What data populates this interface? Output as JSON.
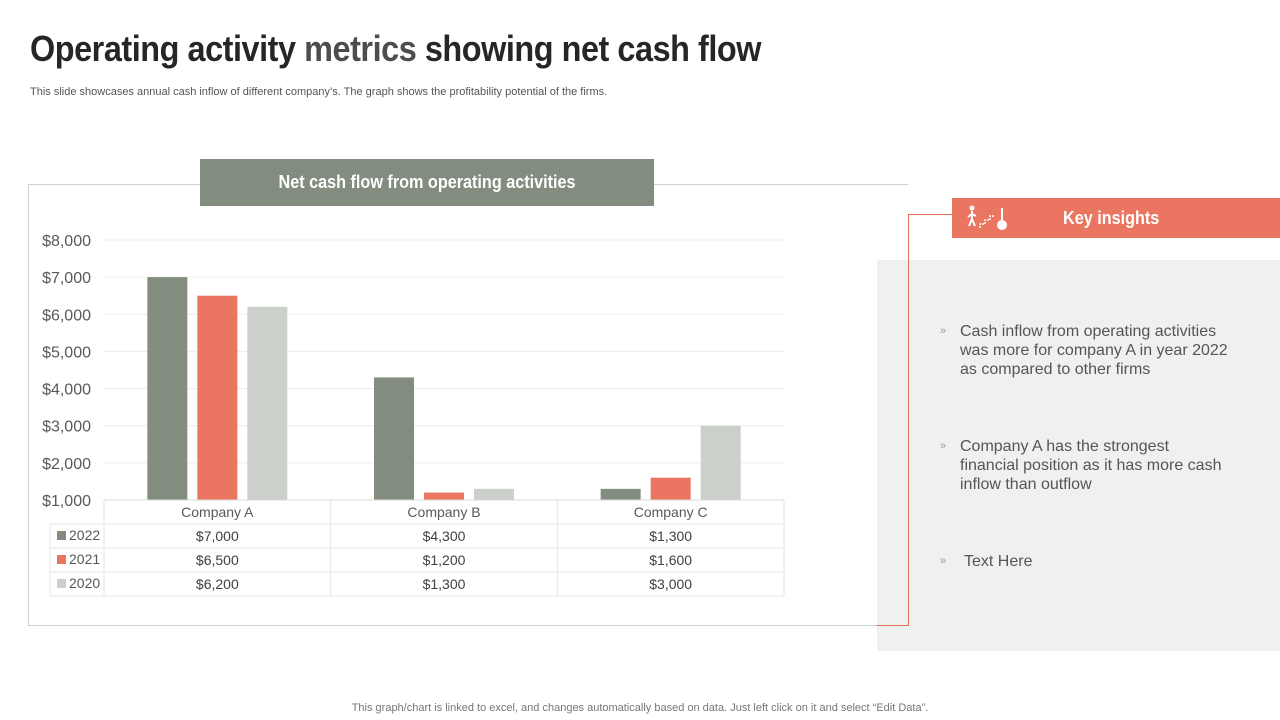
{
  "page": {
    "title_part1": "Operating activity",
    "title_part2": "metrics",
    "title_part3": "showing net cash flow",
    "subtitle": "This slide showcases annual cash inflow of different company’s. The graph shows the profitability potential of the firms.",
    "footer": "This graph/chart is linked to excel,  and changes automatically based on data. Just left click on it and select “Edit Data”."
  },
  "chart_header": "Net cash flow from operating activities",
  "chart_data": {
    "type": "bar",
    "title": "Net cash flow from operating activities",
    "categories": [
      "Company A",
      "Company B",
      "Company C"
    ],
    "series": [
      {
        "name": "2022",
        "color": "#838d7f",
        "values": [
          7000,
          4300,
          1300
        ],
        "labels": [
          "$7,000",
          "$4,300",
          "$1,300"
        ]
      },
      {
        "name": "2021",
        "color": "#ea7560",
        "values": [
          6500,
          1200,
          1600
        ],
        "labels": [
          "$6,500",
          "$1,200",
          "$1,600"
        ]
      },
      {
        "name": "2020",
        "color": "#ccd0cb",
        "values": [
          6200,
          1300,
          3000
        ],
        "labels": [
          "$6,200",
          "$1,300",
          "$3,000"
        ]
      }
    ],
    "ylim": [
      1000,
      8000
    ],
    "yticks": [
      1000,
      2000,
      3000,
      4000,
      5000,
      6000,
      7000,
      8000
    ],
    "ytick_labels": [
      "$1,000",
      "$2,000",
      "$3,000",
      "$4,000",
      "$5,000",
      "$6,000",
      "$7,000",
      "$8,000"
    ],
    "grid": true,
    "legend": "data-table"
  },
  "insights": {
    "header": "Key insights",
    "icon": "growth-steps-icon",
    "bullet_mark": "»",
    "items": [
      "Cash inflow from operating activities was more for company A in year 2022 as compared to other firms",
      "Company A has the strongest financial position as it has more cash inflow than outflow",
      "Text Here"
    ]
  }
}
